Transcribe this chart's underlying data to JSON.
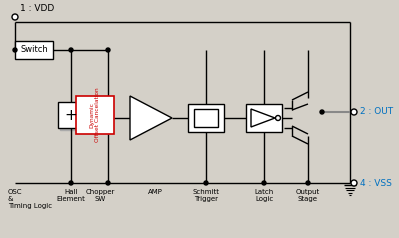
{
  "bg_color": "#d4d0c8",
  "line_color": "#000000",
  "label_color_blue": "#0070c0",
  "label_color_black": "#000000",
  "vdd_label": "1 : VDD",
  "out_label": "2 : OUT",
  "vss_label": "4 : VSS",
  "switch_label": "Switch",
  "osc_label": "OSC\n&\nTiming Logic",
  "hall_label": "Hall\nElement",
  "chopper_label": "Chopper\nSW",
  "amp_label": "AMP",
  "schmitt_label": "Schmitt\nTrigger",
  "latch_label": "Latch\nLogic",
  "output_label": "Output\nStage",
  "doc_label": "Dynamic\nOffset Cancelation"
}
